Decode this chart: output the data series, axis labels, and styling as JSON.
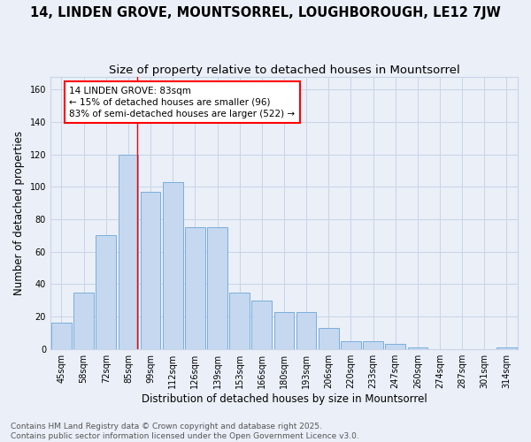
{
  "title": "14, LINDEN GROVE, MOUNTSORREL, LOUGHBOROUGH, LE12 7JW",
  "subtitle": "Size of property relative to detached houses in Mountsorrel",
  "xlabel": "Distribution of detached houses by size in Mountsorrel",
  "ylabel": "Number of detached properties",
  "categories": [
    "45sqm",
    "58sqm",
    "72sqm",
    "85sqm",
    "99sqm",
    "112sqm",
    "126sqm",
    "139sqm",
    "153sqm",
    "166sqm",
    "180sqm",
    "193sqm",
    "206sqm",
    "220sqm",
    "233sqm",
    "247sqm",
    "260sqm",
    "274sqm",
    "287sqm",
    "301sqm",
    "314sqm"
  ],
  "values": [
    16,
    35,
    70,
    120,
    97,
    103,
    75,
    75,
    35,
    30,
    23,
    23,
    13,
    5,
    5,
    3,
    1,
    0,
    0,
    0,
    1
  ],
  "bar_color": "#c5d8f0",
  "bar_edge_color": "#7aaedb",
  "red_line_x": 3.42,
  "annotation_line1": "14 LINDEN GROVE: 83sqm",
  "annotation_line2": "← 15% of detached houses are smaller (96)",
  "annotation_line3": "83% of semi-detached houses are larger (522) →",
  "annotation_box_color": "white",
  "annotation_box_edge_color": "red",
  "red_line_color": "red",
  "ylim": [
    0,
    168
  ],
  "yticks": [
    0,
    20,
    40,
    60,
    80,
    100,
    120,
    140,
    160
  ],
  "grid_color": "#c8d4e8",
  "background_color": "#eaeff8",
  "footer_text": "Contains HM Land Registry data © Crown copyright and database right 2025.\nContains public sector information licensed under the Open Government Licence v3.0.",
  "title_fontsize": 10.5,
  "subtitle_fontsize": 9.5,
  "xlabel_fontsize": 8.5,
  "ylabel_fontsize": 8.5,
  "tick_fontsize": 7,
  "annotation_fontsize": 7.5,
  "footer_fontsize": 6.5
}
